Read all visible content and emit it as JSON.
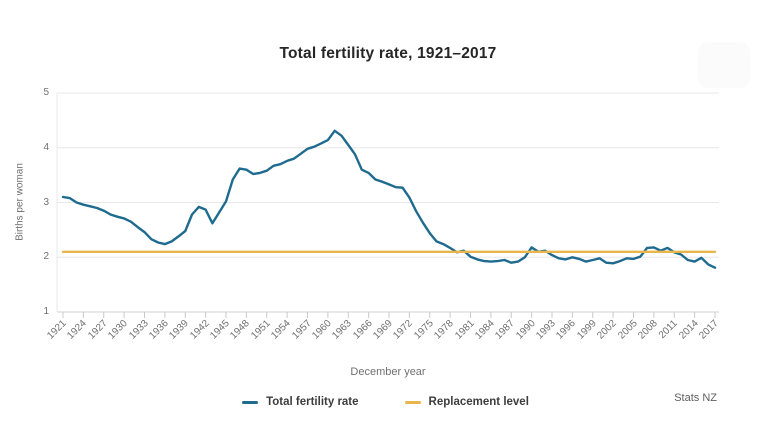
{
  "header": {
    "title": "Total fertility rate, 1921–2017"
  },
  "footer": {
    "credit": "Stats NZ"
  },
  "chart_data": {
    "type": "line",
    "title": "Total fertility rate, 1921–2017",
    "xlabel": "December year",
    "ylabel": "Births per woman",
    "ylim": [
      1,
      5
    ],
    "yticks": [
      5,
      4,
      3,
      2,
      1
    ],
    "x_start": 1921,
    "x_end": 2017,
    "xticks": [
      1921,
      1924,
      1927,
      1930,
      1933,
      1936,
      1939,
      1942,
      1945,
      1948,
      1951,
      1954,
      1957,
      1960,
      1963,
      1966,
      1969,
      1972,
      1975,
      1978,
      1981,
      1984,
      1987,
      1990,
      1993,
      1996,
      1999,
      2002,
      2005,
      2008,
      2011,
      2014,
      2017
    ],
    "grid": "horizontal",
    "legend_position": "bottom",
    "series": [
      {
        "name": "Total fertility rate",
        "color": "#1f6b8f",
        "values": [
          3.1,
          3.08,
          3.0,
          2.96,
          2.93,
          2.9,
          2.85,
          2.78,
          2.74,
          2.71,
          2.65,
          2.55,
          2.46,
          2.33,
          2.27,
          2.24,
          2.29,
          2.38,
          2.48,
          2.78,
          2.92,
          2.87,
          2.62,
          2.82,
          3.02,
          3.42,
          3.62,
          3.6,
          3.52,
          3.54,
          3.58,
          3.67,
          3.7,
          3.76,
          3.8,
          3.89,
          3.98,
          4.02,
          4.08,
          4.14,
          4.31,
          4.22,
          4.05,
          3.88,
          3.6,
          3.54,
          3.42,
          3.38,
          3.33,
          3.28,
          3.27,
          3.09,
          2.84,
          2.63,
          2.44,
          2.29,
          2.24,
          2.17,
          2.09,
          2.12,
          2.01,
          1.96,
          1.93,
          1.92,
          1.93,
          1.95,
          1.9,
          1.92,
          2.0,
          2.18,
          2.1,
          2.12,
          2.04,
          1.98,
          1.96,
          2.0,
          1.97,
          1.92,
          1.95,
          1.98,
          1.9,
          1.89,
          1.93,
          1.98,
          1.97,
          2.01,
          2.17,
          2.18,
          2.12,
          2.17,
          2.09,
          2.05,
          1.95,
          1.92,
          1.99,
          1.87,
          1.81
        ]
      },
      {
        "name": "Replacement level",
        "color": "#e8b64d",
        "constant": 2.1
      }
    ]
  }
}
